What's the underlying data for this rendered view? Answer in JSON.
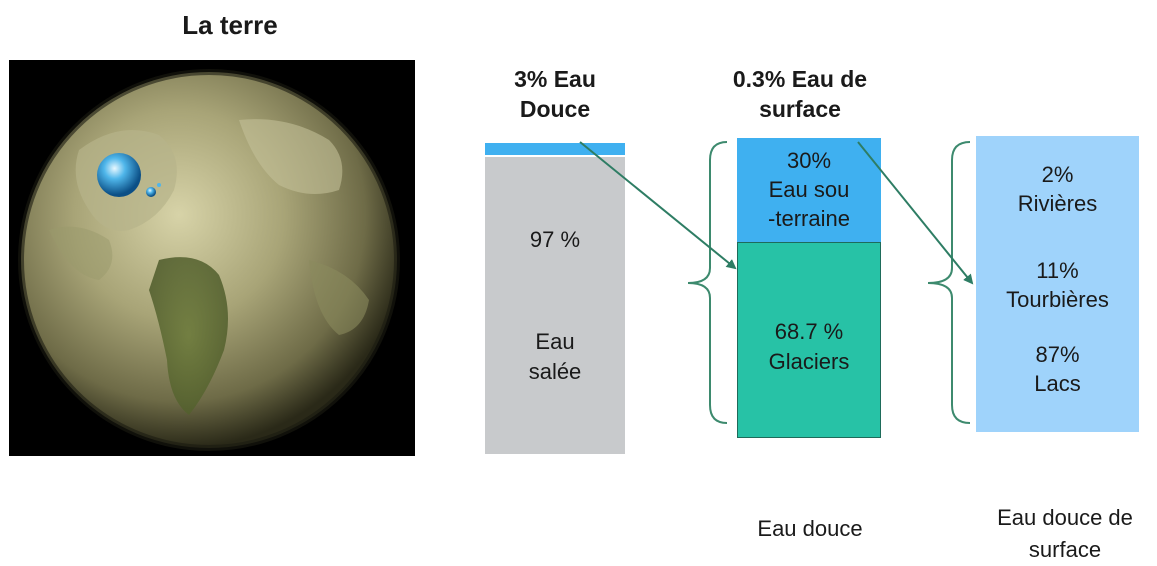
{
  "title": "La terre",
  "col1": {
    "heading_line1": "3% Eau",
    "heading_line2": "Douce",
    "salt_value": "97 %",
    "salt_label_line1": "Eau",
    "salt_label_line2": "salée",
    "fresh_fraction": 0.03
  },
  "col2": {
    "heading_line1": "0.3%  Eau de",
    "heading_line2": "surface",
    "ground_value": "30%",
    "ground_label_line1": "Eau sou",
    "ground_label_line2": "-terraine",
    "glacier_value": "68.7 %",
    "glacier_label": "Glaciers",
    "caption": "Eau douce"
  },
  "col3": {
    "rivers_value": "2%",
    "rivers_label": "Rivières",
    "peat_value": "11%",
    "peat_label": "Tourbières",
    "lakes_value": "87%",
    "lakes_label": "Lacs",
    "caption_line1": "Eau douce de",
    "caption_line2": "surface"
  },
  "colors": {
    "salt": "#c8cacc",
    "fresh": "#3fb0f0",
    "groundwater": "#3fb0f0",
    "glacier": "#27c2a6",
    "surface": "#9fd3fb",
    "arrow": "#2e7d64",
    "brace": "#3d8a6e"
  }
}
